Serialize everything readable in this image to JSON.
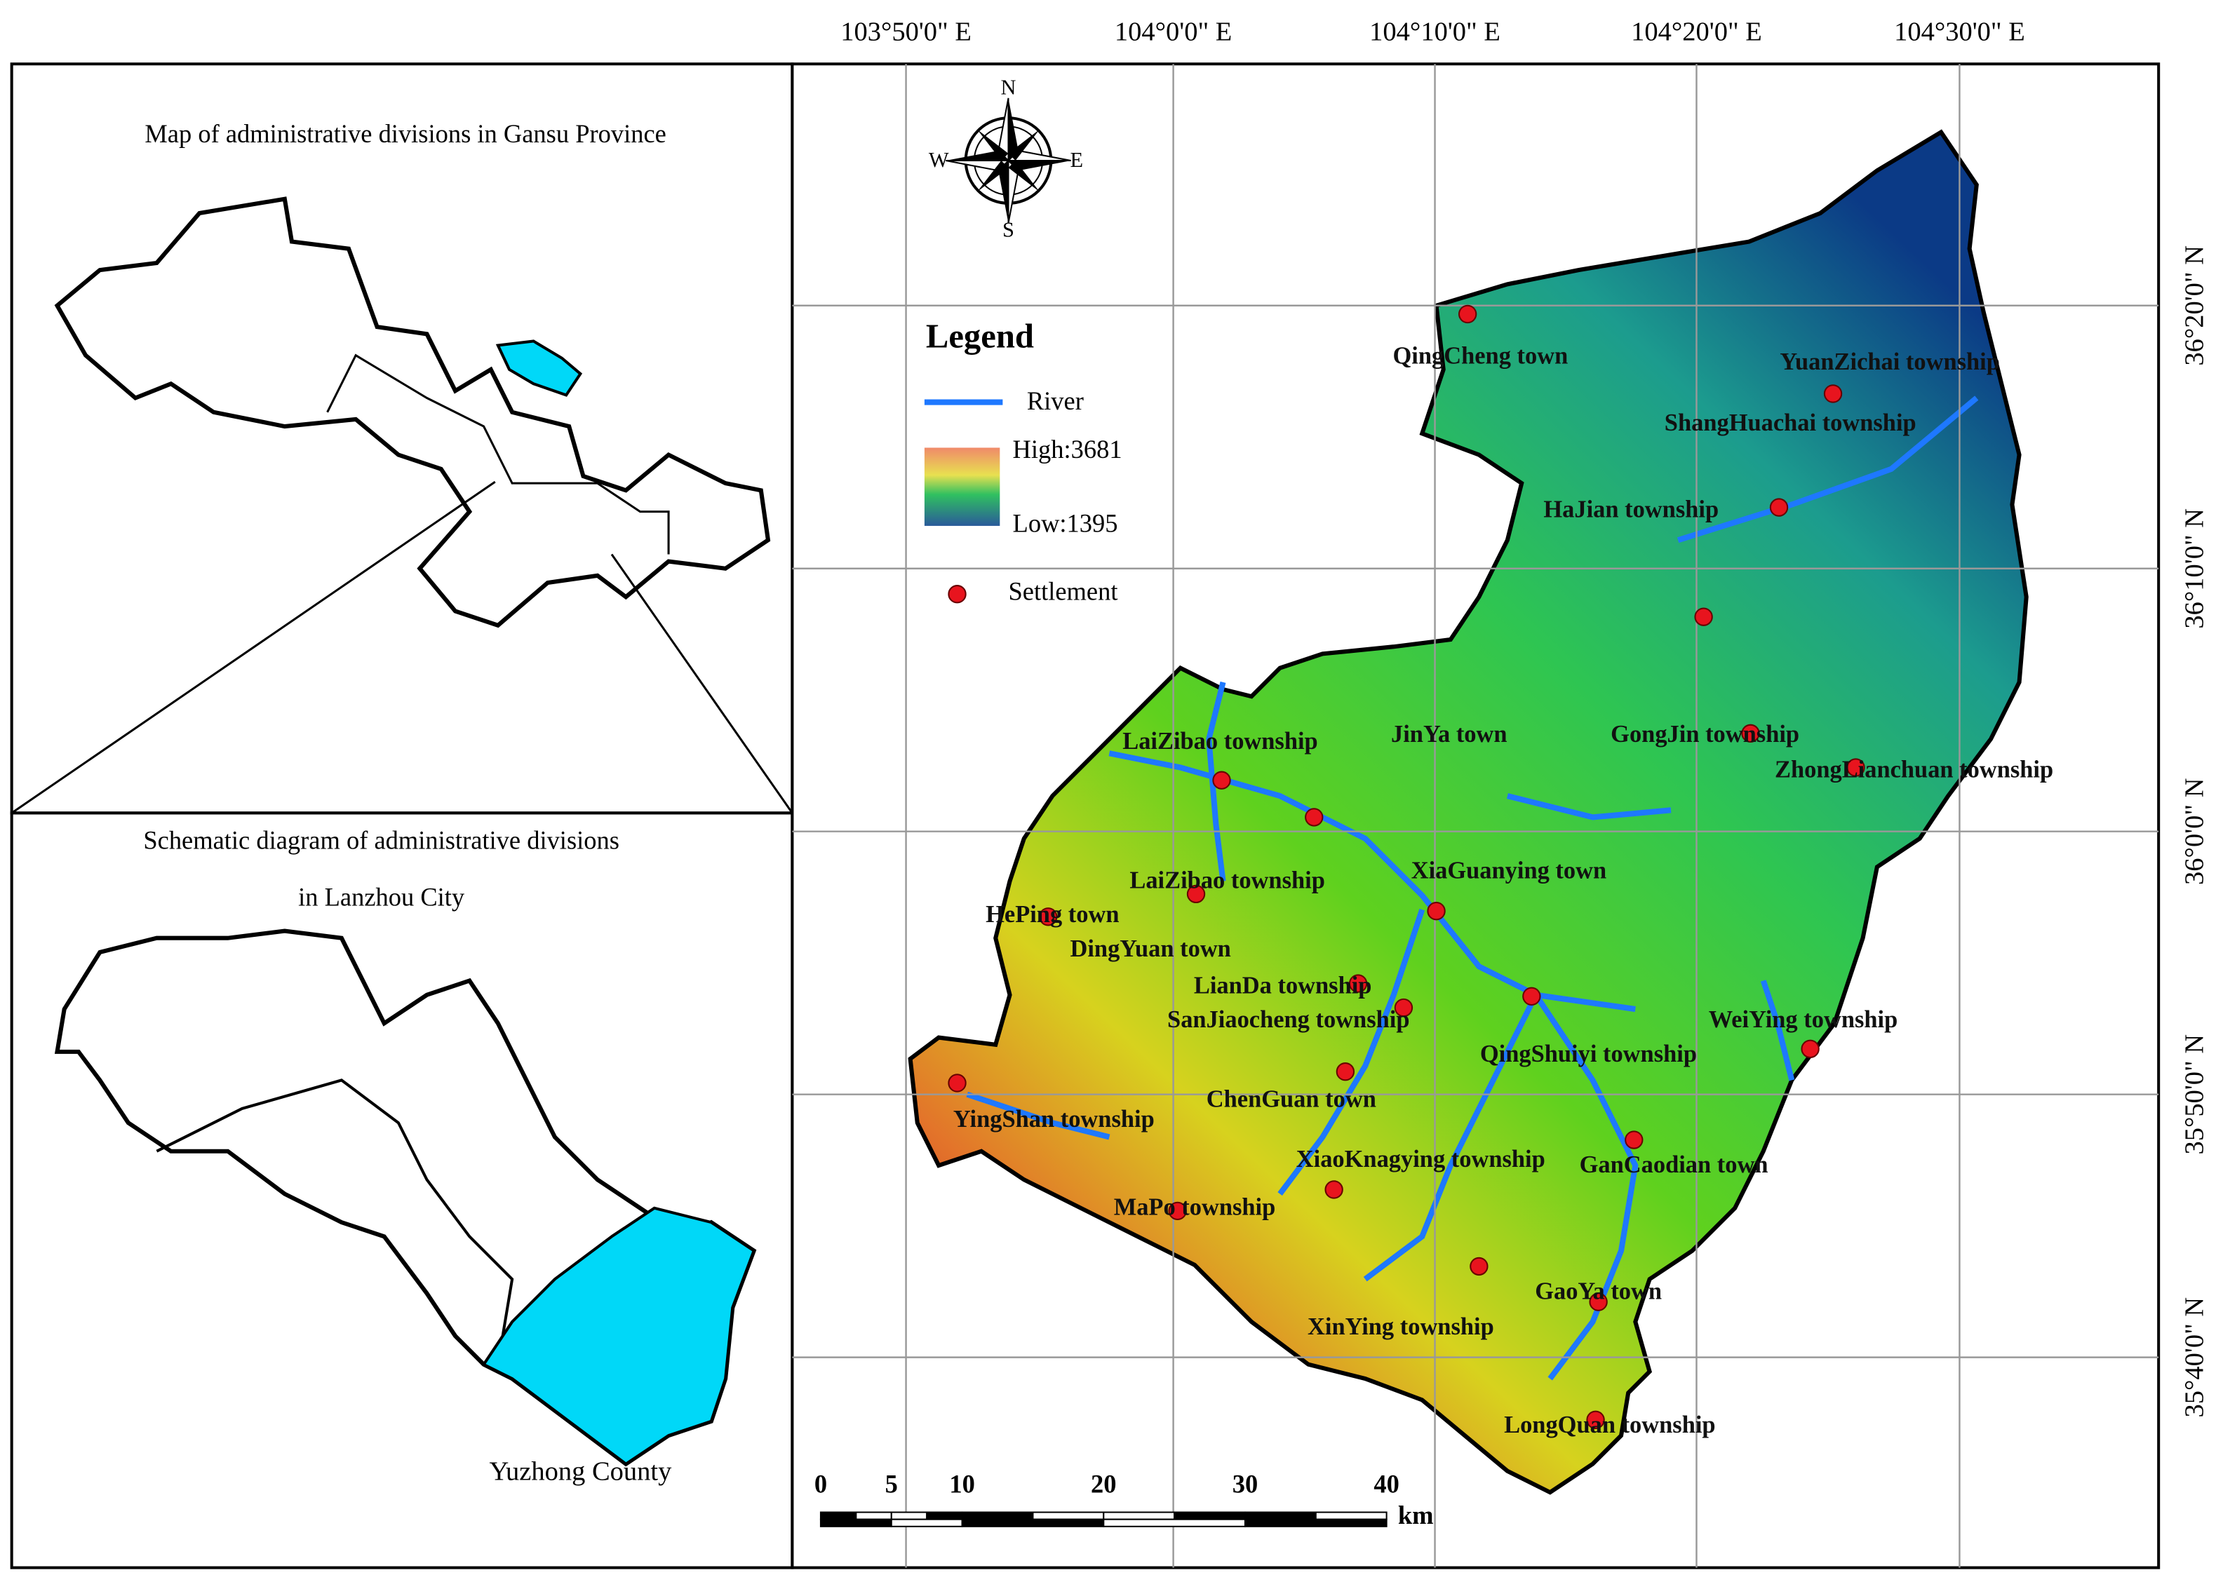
{
  "inset_top": {
    "title": "Map of administrative divisions in Gansu Province"
  },
  "inset_bottom": {
    "title_lines": [
      "Schematic diagram of administrative divisions",
      "in Lanzhou City"
    ],
    "highlight_label": "Yuzhong County"
  },
  "map": {
    "lon_labels": [
      "103°50'0\" E",
      "104°0'0\" E",
      "104°10'0\" E",
      "104°20'0\" E",
      "104°30'0\" E"
    ],
    "lat_labels": [
      "36°20'0\" N",
      "36°10'0\" N",
      "36°0'0\" N",
      "35°50'0\" N",
      "35°40'0\" N"
    ],
    "compass": [
      "N",
      "E",
      "S",
      "W"
    ],
    "legend": {
      "title": "Legend",
      "river": "River",
      "high": "High:3681",
      "low": "Low:1395",
      "settlement": "Settlement"
    },
    "scale_bar": {
      "ticks": [
        0,
        5,
        10,
        20,
        30,
        40
      ],
      "unit": "km"
    },
    "places": [
      "QingCheng town",
      "YuanZichai township",
      "ShangHuachai township",
      "HaJian township",
      "GongJin township",
      "ZhongLianchuan township",
      "LaiZibao township",
      "JinYa town",
      "LaiZibao township",
      "XiaGuanying town",
      "HePing town",
      "DingYuan town",
      "LianDa township",
      "SanJiaocheng township",
      "WeiYing township",
      "QingShuiyi township",
      "ChenGuan town",
      "YingShan township",
      "XiaoKnagying township",
      "GanCaodian town",
      "MaPo township",
      "GaoYa town",
      "XinYing township",
      "LongQuan township"
    ]
  }
}
